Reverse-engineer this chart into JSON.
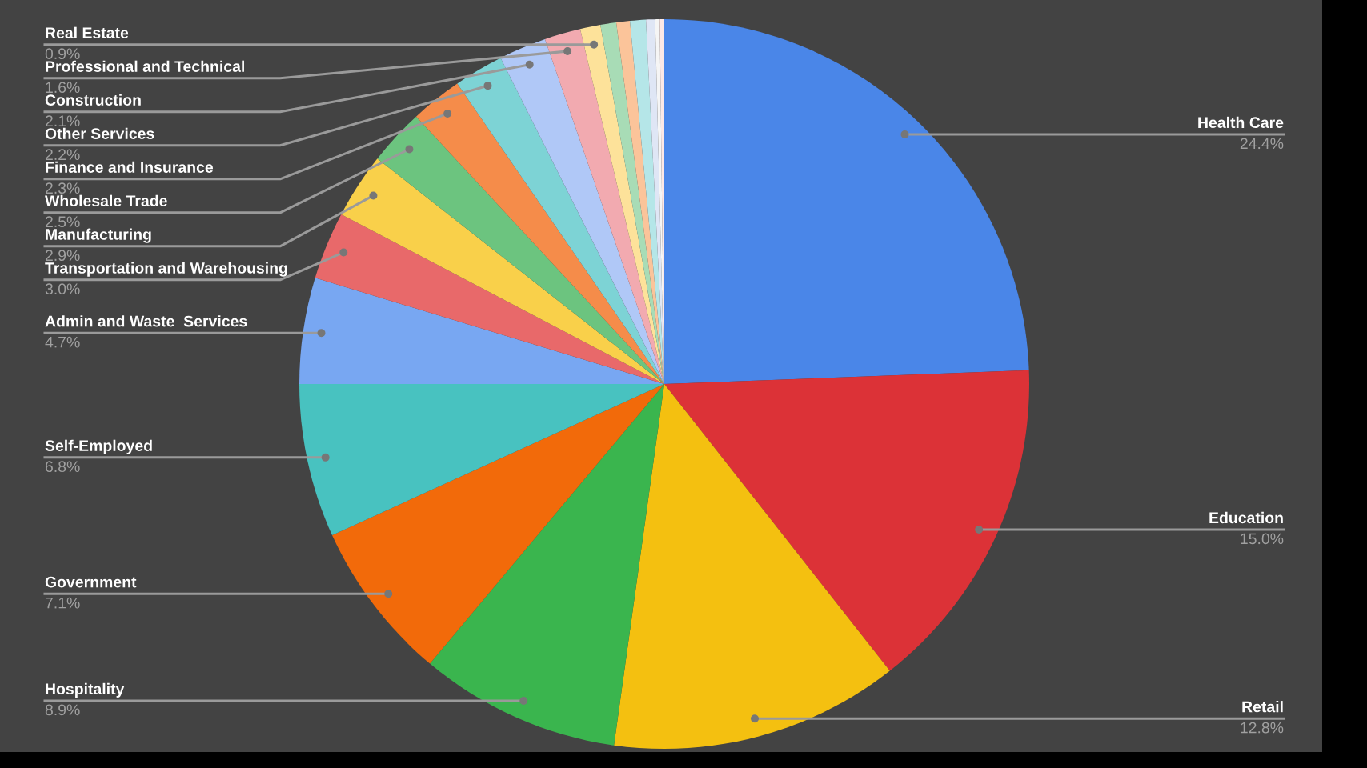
{
  "chart_data": {
    "type": "pie",
    "categories": [
      "Health Care",
      "Education",
      "Retail",
      "Hospitality",
      "Government",
      "Self-Employed",
      "Admin and Waste  Services",
      "Transportation and Warehousing",
      "Manufacturing",
      "Wholesale Trade",
      "Finance and Insurance",
      "Other Services",
      "Construction",
      "Professional and Technical",
      "Real Estate",
      null,
      null,
      null,
      null,
      null,
      null
    ],
    "values": [
      24.4,
      15.0,
      12.8,
      8.9,
      7.1,
      6.8,
      4.7,
      3.0,
      2.9,
      2.5,
      2.3,
      2.2,
      2.1,
      1.6,
      0.9,
      0.7,
      0.6,
      0.7,
      0.4,
      0.2,
      0.2
    ],
    "value_labels": [
      "24.4%",
      "15.0%",
      "12.8%",
      "8.9%",
      "7.1%",
      "6.8%",
      "4.7%",
      "3.0%",
      "2.9%",
      "2.5%",
      "2.3%",
      "2.2%",
      "2.1%",
      "1.6%",
      "0.9%",
      null,
      null,
      null,
      null,
      null,
      null
    ],
    "colors": [
      "#4a86e8",
      "#dc3237",
      "#f4c010",
      "#3ab54e",
      "#f26a0a",
      "#48c2c0",
      "#78a7f2",
      "#e8696a",
      "#f9d04a",
      "#6cc47f",
      "#f58c4a",
      "#7dd3d5",
      "#b0c8f7",
      "#f2aab0",
      "#fde29a",
      "#a8dcb6",
      "#fbc49a",
      "#b5e6e8",
      "#dfe6f5",
      "#f5f5f5",
      "#fce8e6"
    ]
  }
}
